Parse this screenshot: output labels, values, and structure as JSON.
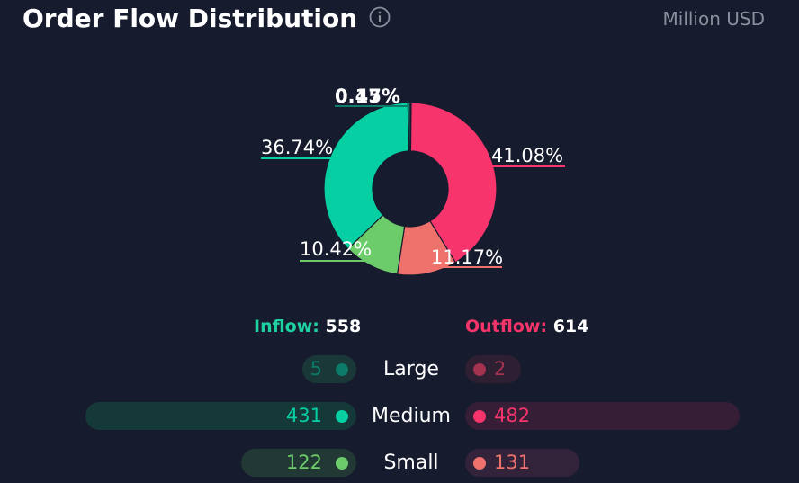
{
  "header": {
    "title": "Order Flow Distribution",
    "unit": "Million USD"
  },
  "totals": {
    "inflow_label": "Inflow:",
    "inflow_value": "558",
    "outflow_label": "Outflow:",
    "outflow_value": "614"
  },
  "rows": [
    {
      "label": "Large",
      "inflow": "5",
      "outflow": "2"
    },
    {
      "label": "Medium",
      "inflow": "431",
      "outflow": "482"
    },
    {
      "label": "Small",
      "inflow": "122",
      "outflow": "131"
    }
  ],
  "colors": {
    "background": "#161b2e",
    "inflow_large": "#0c7a68",
    "inflow_medium": "#06cfa3",
    "inflow_small": "#6dcc6a",
    "outflow_large": "#a3334f",
    "outflow_medium": "#f7346c",
    "outflow_small": "#ef716c",
    "inflow_label": "#1fd1a0",
    "outflow_label": "#f4356a"
  },
  "chart_data": {
    "type": "pie",
    "style": "donut",
    "slices": [
      {
        "category": "Outflow Large",
        "value": 0.17,
        "label": "0.17%",
        "color": "#a3334f"
      },
      {
        "category": "Outflow Medium",
        "value": 41.08,
        "label": "41.08%",
        "color": "#f7346c"
      },
      {
        "category": "Outflow Small",
        "value": 11.17,
        "label": "11.17%",
        "color": "#ef716c"
      },
      {
        "category": "Inflow Small",
        "value": 10.42,
        "label": "10.42%",
        "color": "#6dcc6a"
      },
      {
        "category": "Inflow Medium",
        "value": 36.74,
        "label": "36.74%",
        "color": "#06cfa3"
      },
      {
        "category": "Inflow Large",
        "value": 0.45,
        "label": "0.45%",
        "color": "#0c7a68"
      }
    ]
  }
}
